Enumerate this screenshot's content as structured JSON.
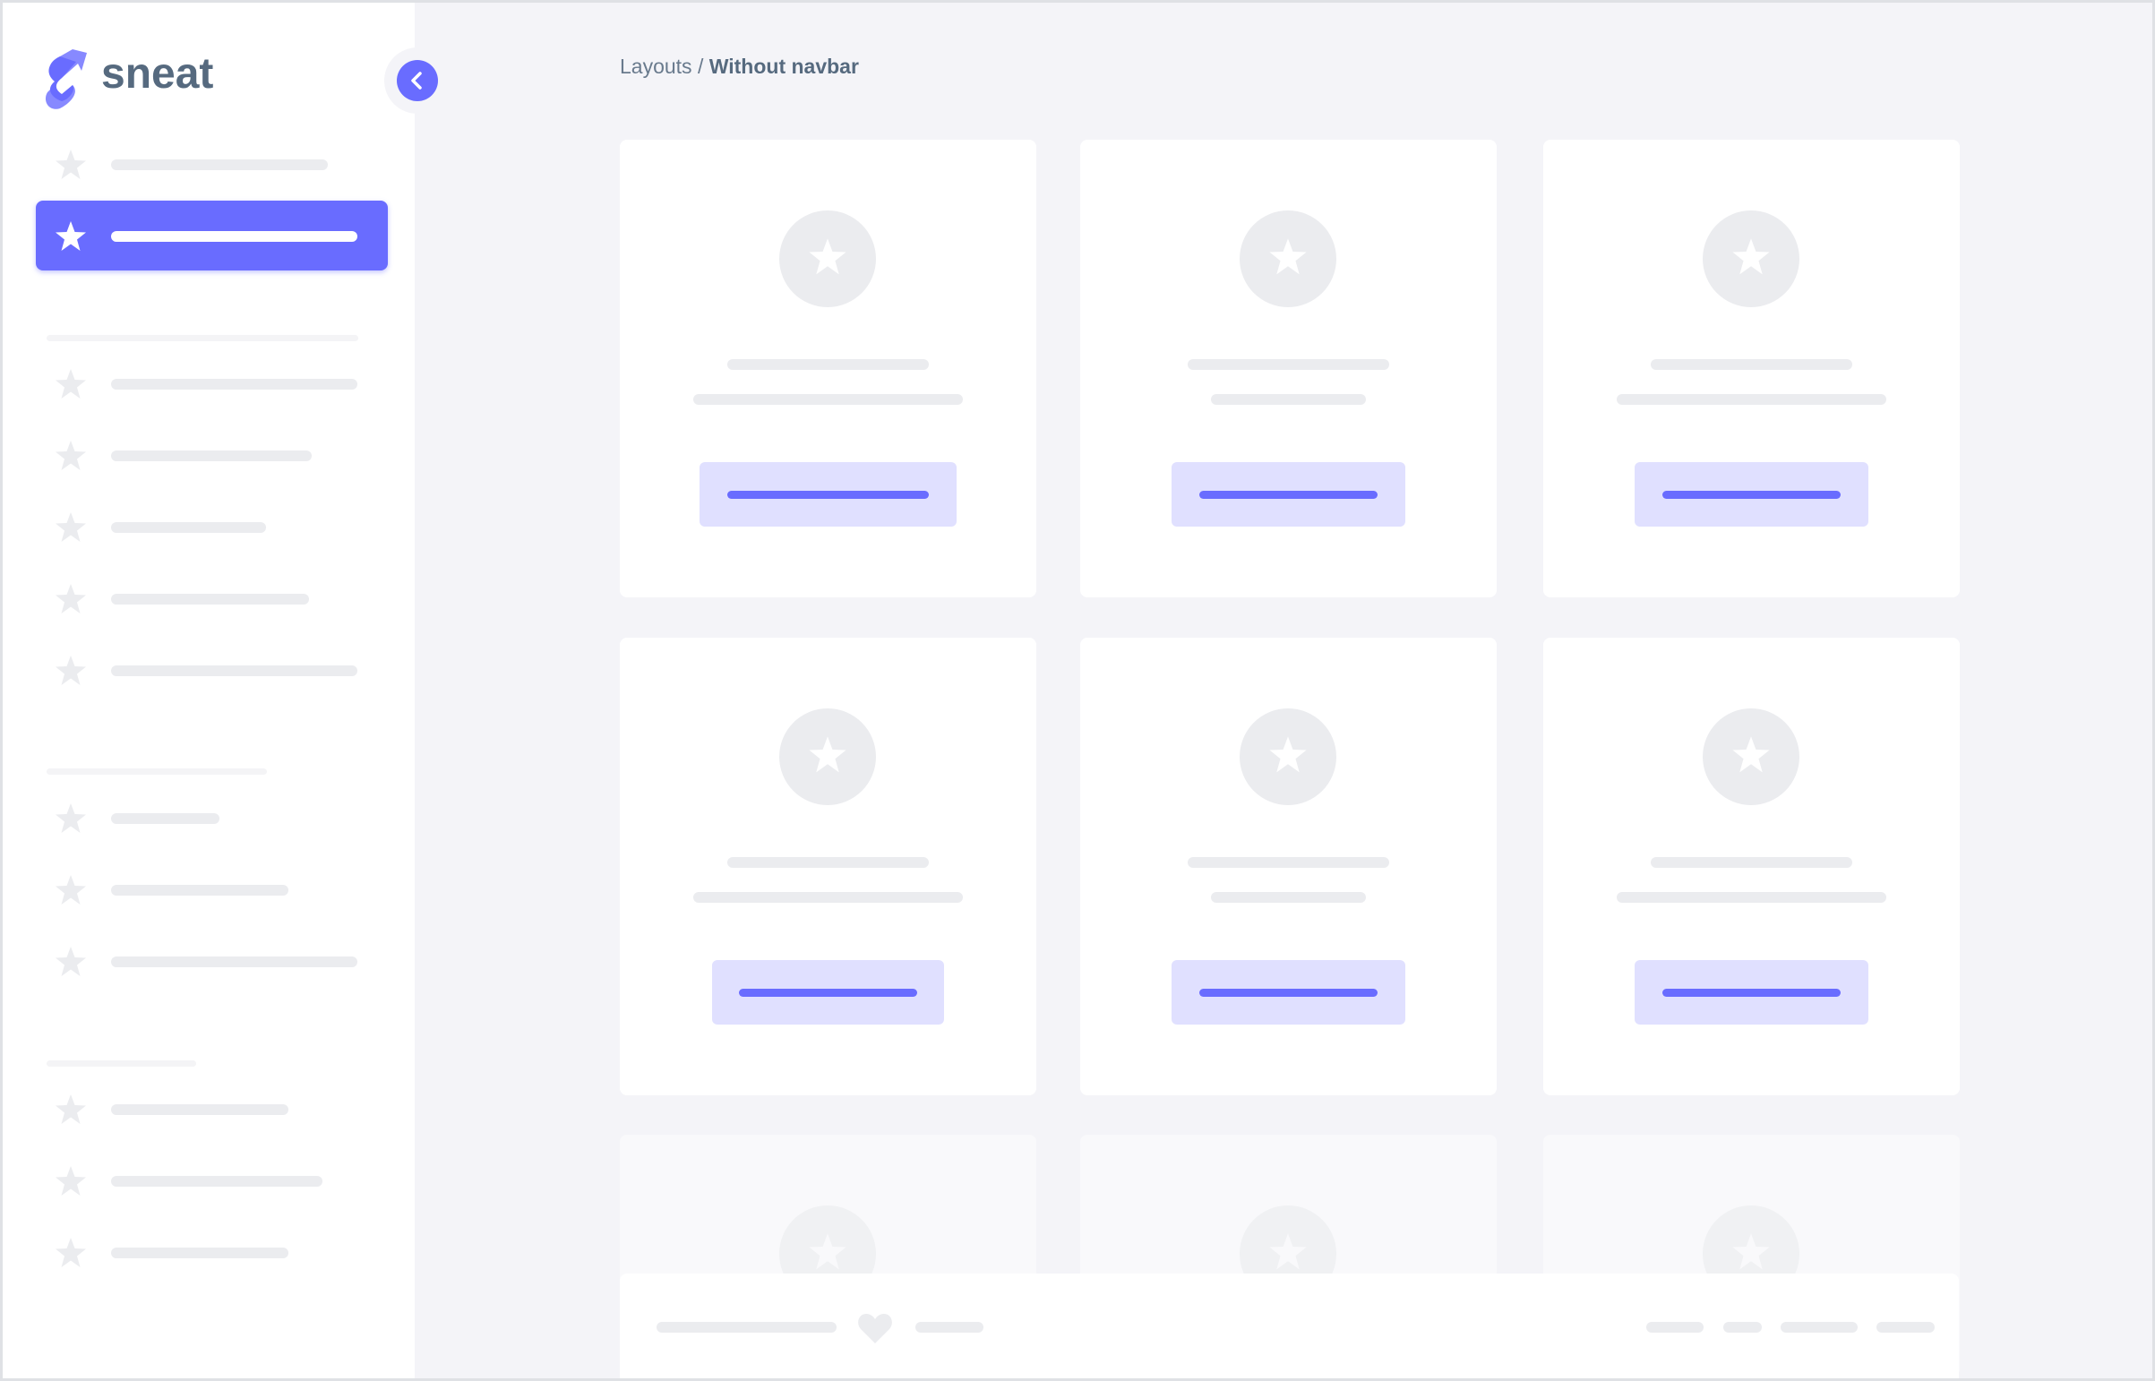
{
  "brand": {
    "name": "sneat",
    "color": "#696cff"
  },
  "breadcrumb": {
    "parent": "Layouts",
    "separator": " / ",
    "current": "Without navbar"
  },
  "sidebar": {
    "collapse_icon": "chevron-left-icon",
    "active_index": 1,
    "items_icon": "star-icon"
  },
  "colors": {
    "primary": "#696cff",
    "background": "#f4f4f8",
    "placeholder": "#ebecef",
    "button_bg": "#e0e0ff"
  },
  "footer": {
    "icon": "heart-icon"
  }
}
